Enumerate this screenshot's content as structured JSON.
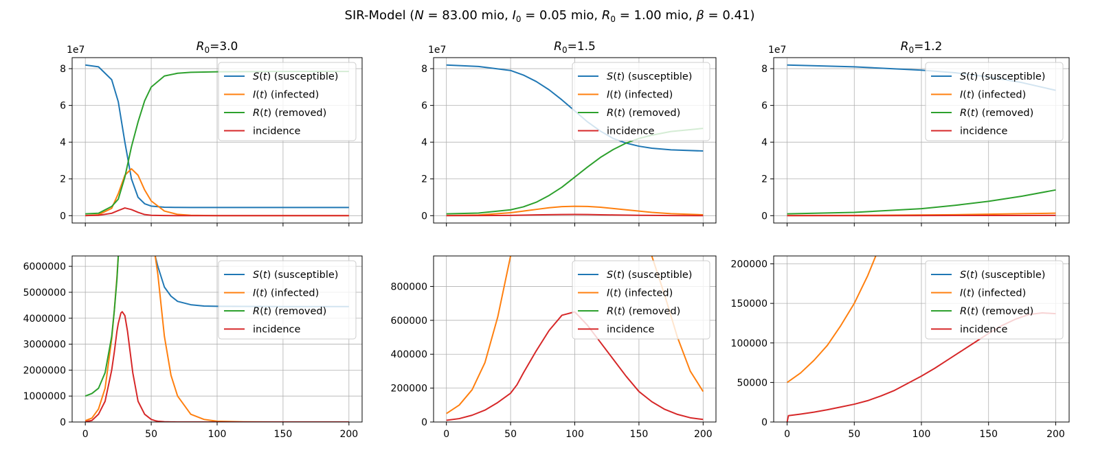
{
  "figure": {
    "suptitle_prefix": "SIR-Model  (",
    "suptitle_parts": [
      {
        "sym": "N",
        "sub": "",
        "val": "83.00 mio"
      },
      {
        "sym": "I",
        "sub": "0",
        "val": "0.05 mio"
      },
      {
        "sym": "R",
        "sub": "0",
        "val": "1.00 mio"
      },
      {
        "sym": "β",
        "sub": "",
        "val": "0.41"
      }
    ],
    "suptitle_suffix": ")"
  },
  "legend_entries": [
    {
      "func": "S",
      "label": " (susceptible)",
      "color": "#1f77b4"
    },
    {
      "func": "I",
      "label": " (infected)",
      "color": "#ff7f0e"
    },
    {
      "func": "R",
      "label": " (removed)",
      "color": "#2ca02c"
    },
    {
      "func": "",
      "label": "incidence",
      "color": "#d62728"
    }
  ],
  "colors": {
    "S": "#1f77b4",
    "I": "#ff7f0e",
    "R": "#2ca02c",
    "incidence": "#d62728",
    "grid": "#b0b0b0"
  },
  "chart_data": [
    {
      "type": "line",
      "title": "R₀=3.0",
      "title_r0": "3.0",
      "offset_text": "1e7",
      "xlim": [
        -10,
        210
      ],
      "ylim": [
        -4000000,
        86000000
      ],
      "xticks": [
        0,
        50,
        100,
        150,
        200
      ],
      "yticks": [
        0,
        20000000,
        40000000,
        60000000,
        80000000
      ],
      "ytick_labels": [
        "0",
        "2",
        "4",
        "6",
        "8"
      ],
      "show_xtick_labels": false,
      "grid": true,
      "legend": "upper-right",
      "x": [
        0,
        10,
        20,
        25,
        30,
        35,
        40,
        45,
        50,
        60,
        70,
        80,
        100,
        150,
        200
      ],
      "series": [
        {
          "key": "S",
          "values": [
            82000000,
            81000000,
            74000000,
            62000000,
            40000000,
            20000000,
            10000000,
            6500000,
            5200000,
            4600000,
            4480000,
            4460000,
            4450000,
            4450000,
            4450000
          ]
        },
        {
          "key": "I",
          "values": [
            50000,
            500000,
            4000000,
            12000000,
            22000000,
            25500000,
            22000000,
            14000000,
            8000000,
            2500000,
            700000,
            200000,
            20000,
            500,
            0
          ]
        },
        {
          "key": "R",
          "values": [
            1000000,
            1300000,
            5000000,
            9000000,
            21000000,
            37500000,
            51000000,
            62500000,
            70000000,
            76000000,
            77500000,
            78000000,
            78300000,
            78500000,
            78500000
          ]
        },
        {
          "key": "incidence",
          "values": [
            12000,
            200000,
            1300000,
            2800000,
            4200000,
            3300000,
            1800000,
            600000,
            200000,
            40000,
            10000,
            2000,
            100,
            0,
            0
          ]
        }
      ]
    },
    {
      "type": "line",
      "title": "R₀=1.5",
      "title_r0": "1.5",
      "offset_text": "1e7",
      "xlim": [
        -10,
        210
      ],
      "ylim": [
        -4000000,
        86000000
      ],
      "xticks": [
        0,
        50,
        100,
        150,
        200
      ],
      "yticks": [
        0,
        20000000,
        40000000,
        60000000,
        80000000
      ],
      "ytick_labels": [
        "0",
        "2",
        "4",
        "6",
        "8"
      ],
      "show_xtick_labels": false,
      "grid": true,
      "legend": "upper-right",
      "x": [
        0,
        25,
        50,
        60,
        70,
        80,
        90,
        100,
        110,
        120,
        130,
        140,
        150,
        160,
        175,
        200
      ],
      "series": [
        {
          "key": "S",
          "values": [
            82000000,
            81200000,
            79000000,
            76500000,
            73000000,
            68500000,
            63000000,
            57000000,
            51000000,
            46000000,
            42000000,
            39500000,
            37800000,
            36700000,
            35800000,
            35200000
          ]
        },
        {
          "key": "I",
          "values": [
            50000,
            350000,
            1600000,
            2500000,
            3400000,
            4300000,
            4900000,
            5100000,
            5000000,
            4600000,
            3900000,
            3200000,
            2500000,
            1800000,
            1100000,
            500000
          ]
        },
        {
          "key": "R",
          "values": [
            1000000,
            1400000,
            3200000,
            4800000,
            7300000,
            11000000,
            15500000,
            21000000,
            26500000,
            31700000,
            36000000,
            39500000,
            42000000,
            43800000,
            45800000,
            47500000
          ]
        },
        {
          "key": "incidence",
          "values": [
            10000,
            70000,
            170000,
            290000,
            420000,
            550000,
            630000,
            650000,
            600000,
            500000,
            390000,
            290000,
            200000,
            140000,
            80000,
            20000
          ]
        }
      ]
    },
    {
      "type": "line",
      "title": "R₀=1.2",
      "title_r0": "1.2",
      "offset_text": "1e7",
      "xlim": [
        -10,
        210
      ],
      "ylim": [
        -4000000,
        86000000
      ],
      "xticks": [
        0,
        50,
        100,
        150,
        200
      ],
      "yticks": [
        0,
        20000000,
        40000000,
        60000000,
        80000000
      ],
      "ytick_labels": [
        "0",
        "2",
        "4",
        "6",
        "8"
      ],
      "show_xtick_labels": false,
      "grid": true,
      "legend": "upper-right",
      "x": [
        0,
        50,
        100,
        125,
        150,
        175,
        200
      ],
      "series": [
        {
          "key": "S",
          "values": [
            82000000,
            81000000,
            79200000,
            77800000,
            75500000,
            72400000,
            68200000
          ]
        },
        {
          "key": "I",
          "values": [
            50000,
            155000,
            380000,
            550000,
            800000,
            1100000,
            1350000
          ]
        },
        {
          "key": "R",
          "values": [
            1000000,
            1800000,
            3800000,
            5600000,
            7800000,
            10600000,
            14000000
          ]
        },
        {
          "key": "incidence",
          "values": [
            8000,
            22000,
            60000,
            85000,
            110000,
            130000,
            137000
          ]
        }
      ]
    },
    {
      "type": "line",
      "title": "",
      "offset_text": "",
      "xlim": [
        -10,
        210
      ],
      "ylim": [
        0,
        6400000
      ],
      "xticks": [
        0,
        50,
        100,
        150,
        200
      ],
      "yticks": [
        0,
        1000000,
        2000000,
        3000000,
        4000000,
        5000000,
        6000000
      ],
      "ytick_labels": [
        "0",
        "1000000",
        "2000000",
        "3000000",
        "4000000",
        "5000000",
        "6000000"
      ],
      "xtick_labels": [
        "0",
        "50",
        "100",
        "150",
        "200"
      ],
      "show_xtick_labels": true,
      "grid": true,
      "legend": "upper-right",
      "x": [
        0,
        5,
        10,
        15,
        20,
        22,
        24,
        25,
        27,
        28,
        30,
        32,
        34,
        36,
        40,
        45,
        50,
        53,
        55,
        60,
        65,
        70,
        80,
        90,
        100,
        120,
        150,
        200
      ],
      "series": [
        {
          "key": "S",
          "x": [
            53,
            55,
            60,
            65,
            70,
            80,
            90,
            100,
            120,
            150,
            200
          ],
          "values": [
            6400000,
            6000000,
            5200000,
            4850000,
            4650000,
            4520000,
            4470000,
            4460000,
            4455000,
            4450000,
            4450000
          ]
        },
        {
          "key": "I",
          "values": [
            50000,
            150000,
            500000,
            1300000,
            3200000,
            4300000,
            5600000,
            6400000,
            null,
            null,
            null,
            null,
            null,
            null,
            null,
            null,
            null,
            6400000,
            5700000,
            3300000,
            1800000,
            1000000,
            300000,
            100000,
            30000,
            5000,
            500,
            0
          ]
        },
        {
          "key": "R",
          "values": [
            1000000,
            1100000,
            1300000,
            1900000,
            3300000,
            4300000,
            5500000,
            6400000,
            null,
            null,
            null,
            null,
            null,
            null,
            null,
            null,
            null,
            null,
            null,
            null,
            null,
            null,
            null,
            null,
            null,
            null,
            null,
            null
          ]
        },
        {
          "key": "incidence",
          "values": [
            10000,
            60000,
            300000,
            800000,
            2000000,
            2700000,
            3500000,
            3800000,
            4200000,
            4250000,
            4100000,
            3500000,
            2700000,
            1900000,
            800000,
            300000,
            100000,
            50000,
            30000,
            10000,
            3000,
            1000,
            0,
            0,
            0,
            0,
            0,
            0
          ]
        }
      ]
    },
    {
      "type": "line",
      "title": "",
      "offset_text": "",
      "xlim": [
        -10,
        210
      ],
      "ylim": [
        0,
        980000
      ],
      "xticks": [
        0,
        50,
        100,
        150,
        200
      ],
      "yticks": [
        0,
        200000,
        400000,
        600000,
        800000
      ],
      "ytick_labels": [
        "0",
        "200000",
        "400000",
        "600000",
        "800000"
      ],
      "xtick_labels": [
        "0",
        "50",
        "100",
        "150",
        "200"
      ],
      "show_xtick_labels": true,
      "grid": true,
      "legend": "upper-right",
      "x": [
        0,
        10,
        20,
        30,
        40,
        50,
        55,
        60,
        70,
        80,
        90,
        100,
        110,
        120,
        130,
        140,
        150,
        160,
        170,
        180,
        190,
        200
      ],
      "series": [
        {
          "key": "I",
          "values": [
            50000,
            100000,
            190000,
            350000,
            620000,
            980000,
            null,
            null,
            null,
            null,
            null,
            null,
            null,
            null,
            null,
            null,
            null,
            980000,
            750000,
            500000,
            300000,
            180000
          ]
        },
        {
          "key": "incidence",
          "values": [
            10000,
            20000,
            40000,
            70000,
            115000,
            170000,
            220000,
            290000,
            420000,
            540000,
            630000,
            650000,
            570000,
            470000,
            370000,
            270000,
            180000,
            120000,
            75000,
            45000,
            25000,
            15000
          ]
        }
      ]
    },
    {
      "type": "line",
      "title": "",
      "offset_text": "",
      "xlim": [
        -10,
        210
      ],
      "ylim": [
        0,
        210000
      ],
      "xticks": [
        0,
        50,
        100,
        150,
        200
      ],
      "yticks": [
        0,
        50000,
        100000,
        150000,
        200000
      ],
      "ytick_labels": [
        "0",
        "50000",
        "100000",
        "150000",
        "200000"
      ],
      "xtick_labels": [
        "0",
        "50",
        "100",
        "150",
        "200"
      ],
      "show_xtick_labels": true,
      "grid": true,
      "legend": "upper-right",
      "x": [
        0,
        1,
        10,
        20,
        30,
        40,
        50,
        60,
        70,
        80,
        90,
        100,
        110,
        120,
        130,
        140,
        150,
        160,
        170,
        180,
        190,
        200
      ],
      "series": [
        {
          "key": "I",
          "x": [
            0,
            10,
            20,
            30,
            40,
            50,
            60,
            66
          ],
          "values": [
            50000,
            62000,
            78000,
            97000,
            122000,
            150000,
            185000,
            210000
          ]
        },
        {
          "key": "incidence",
          "values": [
            0,
            8000,
            10000,
            12500,
            15500,
            19000,
            22500,
            27000,
            33000,
            40000,
            49000,
            58000,
            68000,
            79000,
            90000,
            101000,
            112000,
            122000,
            130000,
            136000,
            138000,
            137000
          ]
        }
      ]
    }
  ]
}
